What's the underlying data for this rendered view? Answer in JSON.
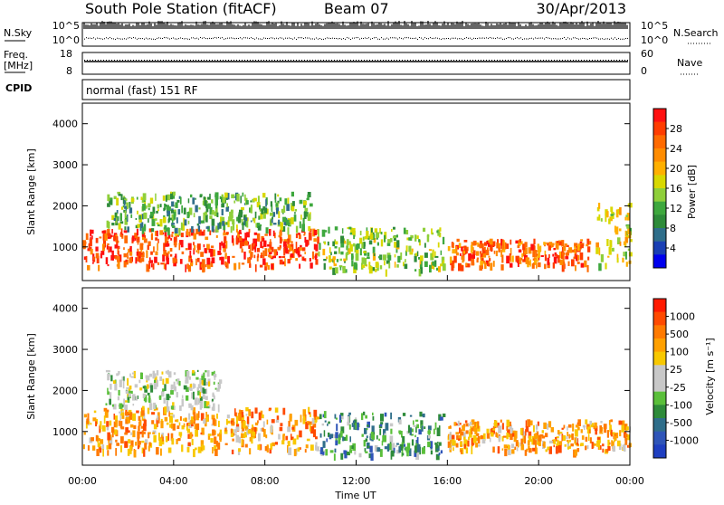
{
  "header": {
    "station": "South Pole Station (fitACF)",
    "beam": "Beam 07",
    "date": "30/Apr/2013"
  },
  "param_panels": {
    "nsky_label": "N.Sky",
    "nsky_ticks": [
      "10^5",
      "10^0"
    ],
    "nsearch_label": "N.Search",
    "nsearch_ticks": [
      "10^5",
      "10^0"
    ],
    "freq_label_1": "Freq.",
    "freq_label_2": "[MHz]",
    "freq_ticks": [
      "18",
      "8"
    ],
    "nave_label": "Nave",
    "nave_ticks": [
      "60",
      "0"
    ],
    "cpid_label": "CPID",
    "cpid_value": "normal (fast) 151 RF"
  },
  "chart_data": [
    {
      "type": "heatmap",
      "name": "power",
      "ylabel": "Slant Range [km]",
      "ylim": [
        180,
        4500
      ],
      "yticks": [
        1000,
        2000,
        3000,
        4000
      ],
      "xlim": [
        0,
        24
      ],
      "colorbar": {
        "label": "Power [dB]",
        "ticks": [
          "28",
          "24",
          "20",
          "16",
          "12",
          "8",
          "4"
        ],
        "colors": [
          "#0000ee",
          "#1a3fb4",
          "#2f6e8a",
          "#2e8b3a",
          "#3ea83e",
          "#8fcf3a",
          "#d8d800",
          "#ffb000",
          "#ff8c00",
          "#ff6a00",
          "#ff3c00",
          "#ff1010"
        ]
      },
      "echo_bands": [
        {
          "x0": 0.0,
          "x1": 10.3,
          "y0": 550,
          "y1": 1450,
          "level": 10
        },
        {
          "x0": 1.0,
          "x1": 10.0,
          "y0": 1450,
          "y1": 2350,
          "level": 4
        },
        {
          "x0": 10.3,
          "x1": 15.8,
          "y0": 450,
          "y1": 1500,
          "level": 5
        },
        {
          "x0": 16.0,
          "x1": 22.2,
          "y0": 550,
          "y1": 1200,
          "level": 9
        },
        {
          "x0": 22.5,
          "x1": 24.0,
          "y0": 600,
          "y1": 2100,
          "level": 6
        }
      ]
    },
    {
      "type": "heatmap",
      "name": "velocity",
      "ylabel": "Slant Range [km]",
      "ylim": [
        180,
        4500
      ],
      "yticks": [
        1000,
        2000,
        3000,
        4000
      ],
      "xlim": [
        0,
        24
      ],
      "xlabel": "Time UT",
      "xticks": [
        "00:00",
        "04:00",
        "08:00",
        "12:00",
        "16:00",
        "20:00",
        "00:00"
      ],
      "colorbar": {
        "label": "Velocity [m s⁻¹]",
        "ticks": [
          "1000",
          "500",
          "100",
          "25",
          "-25",
          "-100",
          "-500",
          "-1000"
        ],
        "colors": [
          "#1f3fc0",
          "#2f55b8",
          "#2f6e8a",
          "#2e8b3a",
          "#5abf3a",
          "#c8c8c8",
          "#c8c8c8",
          "#f8c800",
          "#ffa000",
          "#ff7a00",
          "#ff4a00",
          "#ff1a00"
        ]
      },
      "echo_bands": [
        {
          "x0": 0.0,
          "x1": 10.3,
          "y0": 550,
          "y1": 1600,
          "level": 8
        },
        {
          "x0": 1.0,
          "x1": 6.0,
          "y0": 1600,
          "y1": 2500,
          "level": 5
        },
        {
          "x0": 10.3,
          "x1": 15.8,
          "y0": 450,
          "y1": 1500,
          "level": 3
        },
        {
          "x0": 16.0,
          "x1": 24.0,
          "y0": 550,
          "y1": 1300,
          "level": 8
        }
      ]
    }
  ]
}
